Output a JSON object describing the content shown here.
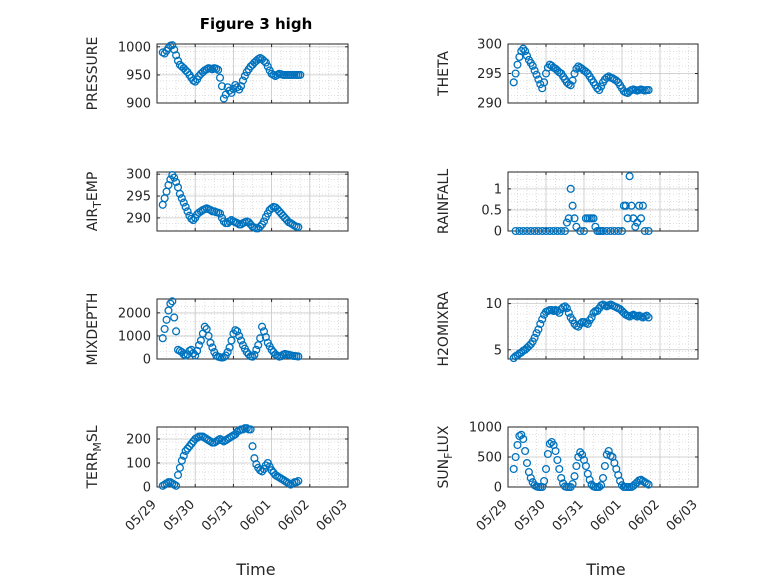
{
  "figure": {
    "title": "Figure 3 high",
    "xlabel": "Time",
    "x_ticks": [
      "05/29",
      "05/30",
      "05/31",
      "06/01",
      "06/02",
      "06/03"
    ],
    "marker_color": "#0072BD",
    "grid": "dotted"
  },
  "chart_data": [
    {
      "type": "scatter",
      "title": "Figure 3 high",
      "ylabel": "PRESSURE",
      "ylim": [
        900,
        1005
      ],
      "yticks": [
        900,
        950,
        1000
      ],
      "x": [
        0.15,
        0.2,
        0.25,
        0.3,
        0.35,
        0.4,
        0.45,
        0.5,
        0.55,
        0.6,
        0.65,
        0.7,
        0.75,
        0.8,
        0.85,
        0.9,
        0.95,
        1.0,
        1.05,
        1.1,
        1.15,
        1.2,
        1.25,
        1.3,
        1.35,
        1.4,
        1.45,
        1.5,
        1.55,
        1.6,
        1.65,
        1.7,
        1.75,
        1.8,
        1.85,
        1.9,
        1.95,
        2.0,
        2.05,
        2.1,
        2.15,
        2.2,
        2.25,
        2.3,
        2.35,
        2.4,
        2.45,
        2.5,
        2.55,
        2.6,
        2.65,
        2.7,
        2.75,
        2.8,
        2.85,
        2.9,
        2.95,
        3.0,
        3.05,
        3.1,
        3.15,
        3.2,
        3.25,
        3.3,
        3.35,
        3.4,
        3.45,
        3.5,
        3.55,
        3.6,
        3.65,
        3.7,
        3.75
      ],
      "y": [
        990,
        988,
        993,
        998,
        1002,
        1003,
        995,
        985,
        975,
        968,
        965,
        962,
        958,
        955,
        950,
        945,
        940,
        938,
        942,
        948,
        952,
        955,
        958,
        960,
        962,
        961,
        960,
        962,
        961,
        959,
        945,
        930,
        908,
        915,
        928,
        922,
        918,
        925,
        932,
        928,
        924,
        930,
        940,
        948,
        955,
        960,
        965,
        968,
        972,
        975,
        978,
        980,
        978,
        975,
        972,
        965,
        958,
        952,
        950,
        948,
        950,
        952,
        951,
        950,
        950,
        950,
        950,
        950,
        950,
        950,
        950,
        950,
        950
      ]
    },
    {
      "type": "scatter",
      "ylabel": "THETA",
      "ylim": [
        290,
        300
      ],
      "yticks": [
        290,
        295,
        300
      ],
      "x": [
        0.15,
        0.2,
        0.25,
        0.3,
        0.35,
        0.4,
        0.45,
        0.5,
        0.55,
        0.6,
        0.65,
        0.7,
        0.75,
        0.8,
        0.85,
        0.9,
        0.95,
        1.0,
        1.05,
        1.1,
        1.15,
        1.2,
        1.25,
        1.3,
        1.35,
        1.4,
        1.45,
        1.5,
        1.55,
        1.6,
        1.65,
        1.7,
        1.75,
        1.8,
        1.85,
        1.9,
        1.95,
        2.0,
        2.05,
        2.1,
        2.15,
        2.2,
        2.25,
        2.3,
        2.35,
        2.4,
        2.45,
        2.5,
        2.55,
        2.6,
        2.65,
        2.7,
        2.75,
        2.8,
        2.85,
        2.9,
        2.95,
        3.0,
        3.05,
        3.1,
        3.15,
        3.2,
        3.25,
        3.3,
        3.35,
        3.4,
        3.45,
        3.5,
        3.55,
        3.6,
        3.65,
        3.7
      ],
      "y": [
        293.5,
        295,
        296.5,
        297.8,
        298.8,
        299.2,
        298.8,
        298,
        297.3,
        296.8,
        296.3,
        295.5,
        294.8,
        294,
        293.2,
        292.5,
        293.5,
        295,
        296,
        296.5,
        296.3,
        296,
        295.8,
        295.5,
        295.2,
        295,
        294.5,
        294,
        293.5,
        293.2,
        293,
        293.8,
        295,
        295.8,
        296.2,
        296,
        295.8,
        295.5,
        295.3,
        295,
        294.5,
        294,
        293.5,
        293,
        292.5,
        292.2,
        292.8,
        293.5,
        294,
        294.3,
        294.5,
        294.3,
        294.2,
        294.0,
        293.8,
        293.5,
        293.0,
        292.5,
        292.0,
        291.8,
        291.7,
        292.0,
        292.2,
        292.3,
        292.2,
        292.1,
        292.2,
        292.3,
        292.2,
        292.1,
        292.2,
        292.2
      ]
    },
    {
      "type": "scatter",
      "ylabel": "AIR_TEMP",
      "ylim": [
        287,
        300.5
      ],
      "yticks": [
        290,
        295,
        300
      ],
      "x": [
        0.15,
        0.2,
        0.25,
        0.3,
        0.35,
        0.4,
        0.45,
        0.5,
        0.55,
        0.6,
        0.65,
        0.7,
        0.75,
        0.8,
        0.85,
        0.9,
        0.95,
        1.0,
        1.05,
        1.1,
        1.15,
        1.2,
        1.25,
        1.3,
        1.35,
        1.4,
        1.45,
        1.5,
        1.55,
        1.6,
        1.65,
        1.7,
        1.75,
        1.8,
        1.85,
        1.9,
        1.95,
        2.0,
        2.05,
        2.1,
        2.15,
        2.2,
        2.25,
        2.3,
        2.35,
        2.4,
        2.45,
        2.5,
        2.55,
        2.6,
        2.65,
        2.7,
        2.75,
        2.8,
        2.85,
        2.9,
        2.95,
        3.0,
        3.05,
        3.1,
        3.15,
        3.2,
        3.25,
        3.3,
        3.35,
        3.4,
        3.45,
        3.5,
        3.55,
        3.6,
        3.65,
        3.7
      ],
      "y": [
        293,
        294.5,
        296,
        297.5,
        298.8,
        299.8,
        299.2,
        298.2,
        297,
        295.5,
        294.5,
        293.5,
        292.5,
        291.5,
        290.5,
        289.8,
        289.5,
        290,
        290.8,
        291.2,
        291.5,
        291.8,
        292,
        292.2,
        292,
        291.8,
        291.5,
        291.5,
        291.3,
        291.2,
        291,
        290,
        289.2,
        288.8,
        288.8,
        289.2,
        289.5,
        289.2,
        289,
        288.8,
        288.5,
        288.5,
        288.8,
        289,
        289.2,
        289,
        288.5,
        288,
        287.8,
        287.6,
        287.6,
        288,
        288.5,
        289.2,
        290.2,
        291,
        291.8,
        292.2,
        292.5,
        292.4,
        292.0,
        291.5,
        291,
        290.5,
        290,
        289.5,
        289,
        288.8,
        288.5,
        288.2,
        288,
        287.9
      ]
    },
    {
      "type": "scatter",
      "ylabel": "RAINFALL",
      "ylim": [
        0,
        1.4
      ],
      "yticks": [
        0,
        0.5,
        1
      ],
      "x": [
        0.2,
        0.3,
        0.4,
        0.5,
        0.6,
        0.7,
        0.8,
        0.9,
        1.0,
        1.1,
        1.2,
        1.3,
        1.4,
        1.5,
        1.55,
        1.6,
        1.65,
        1.7,
        1.75,
        1.8,
        1.9,
        2.0,
        2.05,
        2.1,
        2.15,
        2.2,
        2.25,
        2.3,
        2.35,
        2.4,
        2.45,
        2.5,
        2.6,
        2.7,
        2.8,
        2.9,
        3.0,
        3.05,
        3.1,
        3.15,
        3.2,
        3.25,
        3.3,
        3.35,
        3.4,
        3.45,
        3.5,
        3.55,
        3.6,
        3.7
      ],
      "y": [
        0,
        0,
        0,
        0,
        0,
        0,
        0,
        0,
        0,
        0,
        0,
        0,
        0,
        0,
        0.2,
        0.3,
        1.0,
        0.6,
        0.3,
        0.1,
        0,
        0,
        0.3,
        0.3,
        0.3,
        0.3,
        0.3,
        0.1,
        0,
        0,
        0,
        0,
        0,
        0,
        0,
        0,
        0,
        0.6,
        0.6,
        0.3,
        1.3,
        0.6,
        0.3,
        0.1,
        0.2,
        0.6,
        0.3,
        0.6,
        0,
        0
      ]
    },
    {
      "type": "scatter",
      "ylabel": "MIXDEPTH",
      "ylim": [
        0,
        2600
      ],
      "yticks": [
        0,
        1000,
        2000
      ],
      "x": [
        0.15,
        0.2,
        0.25,
        0.3,
        0.35,
        0.4,
        0.45,
        0.5,
        0.55,
        0.6,
        0.65,
        0.7,
        0.75,
        0.8,
        0.85,
        0.9,
        0.95,
        1.0,
        1.05,
        1.1,
        1.15,
        1.2,
        1.25,
        1.3,
        1.35,
        1.4,
        1.45,
        1.5,
        1.55,
        1.6,
        1.65,
        1.7,
        1.75,
        1.8,
        1.85,
        1.9,
        1.95,
        2.0,
        2.05,
        2.1,
        2.15,
        2.2,
        2.25,
        2.3,
        2.35,
        2.4,
        2.45,
        2.5,
        2.55,
        2.6,
        2.65,
        2.7,
        2.75,
        2.8,
        2.85,
        2.9,
        2.95,
        3.0,
        3.05,
        3.1,
        3.15,
        3.2,
        3.25,
        3.3,
        3.35,
        3.4,
        3.45,
        3.5,
        3.55,
        3.6,
        3.65,
        3.7
      ],
      "y": [
        900,
        1300,
        1700,
        2100,
        2400,
        2500,
        1800,
        1200,
        400,
        350,
        300,
        200,
        150,
        200,
        350,
        400,
        250,
        150,
        350,
        600,
        800,
        1100,
        1400,
        1300,
        1000,
        700,
        500,
        300,
        150,
        100,
        80,
        60,
        80,
        150,
        300,
        500,
        800,
        1100,
        1250,
        1200,
        1000,
        800,
        600,
        450,
        300,
        200,
        120,
        100,
        180,
        400,
        600,
        900,
        1400,
        1200,
        950,
        700,
        550,
        400,
        300,
        200,
        150,
        100,
        120,
        180,
        220,
        200,
        180,
        160,
        140,
        130,
        120,
        110
      ]
    },
    {
      "type": "scatter",
      "ylabel": "H2OMIXRA",
      "ylim": [
        4,
        10.5
      ],
      "yticks": [
        5,
        10
      ],
      "x": [
        0.15,
        0.2,
        0.25,
        0.3,
        0.35,
        0.4,
        0.45,
        0.5,
        0.55,
        0.6,
        0.65,
        0.7,
        0.75,
        0.8,
        0.85,
        0.9,
        0.95,
        1.0,
        1.05,
        1.1,
        1.15,
        1.2,
        1.25,
        1.3,
        1.35,
        1.4,
        1.45,
        1.5,
        1.55,
        1.6,
        1.65,
        1.7,
        1.75,
        1.8,
        1.85,
        1.9,
        1.95,
        2.0,
        2.05,
        2.1,
        2.15,
        2.2,
        2.25,
        2.3,
        2.35,
        2.4,
        2.45,
        2.5,
        2.55,
        2.6,
        2.65,
        2.7,
        2.75,
        2.8,
        2.85,
        2.9,
        2.95,
        3.0,
        3.05,
        3.1,
        3.15,
        3.2,
        3.25,
        3.3,
        3.35,
        3.4,
        3.45,
        3.5,
        3.55,
        3.6,
        3.65,
        3.7
      ],
      "y": [
        4.1,
        4.3,
        4.4,
        4.6,
        4.7,
        4.9,
        5.0,
        5.2,
        5.4,
        5.6,
        5.9,
        6.3,
        6.8,
        7.2,
        7.8,
        8.3,
        8.8,
        9.1,
        9.2,
        9.3,
        9.3,
        9.2,
        9.3,
        9.2,
        9.0,
        9.4,
        9.6,
        9.7,
        9.5,
        9.0,
        8.5,
        8.2,
        7.8,
        7.6,
        7.5,
        7.8,
        8.0,
        8.0,
        7.9,
        7.8,
        8.2,
        8.5,
        9.0,
        9.2,
        9.2,
        9.5,
        9.8,
        9.9,
        9.8,
        9.7,
        9.8,
        9.9,
        9.8,
        9.7,
        9.6,
        9.5,
        9.4,
        9.2,
        9.0,
        8.8,
        8.7,
        8.6,
        8.7,
        8.8,
        8.7,
        8.6,
        8.7,
        8.6,
        8.5,
        8.6,
        8.7,
        8.5
      ]
    },
    {
      "type": "scatter",
      "ylabel": "TERR_MSL",
      "ylim": [
        0,
        250
      ],
      "yticks": [
        0,
        100,
        200
      ],
      "x": [
        0.15,
        0.2,
        0.25,
        0.3,
        0.35,
        0.4,
        0.45,
        0.5,
        0.55,
        0.6,
        0.65,
        0.7,
        0.75,
        0.8,
        0.85,
        0.9,
        0.95,
        1.0,
        1.05,
        1.1,
        1.15,
        1.2,
        1.25,
        1.3,
        1.35,
        1.4,
        1.45,
        1.5,
        1.55,
        1.6,
        1.65,
        1.7,
        1.75,
        1.8,
        1.85,
        1.9,
        1.95,
        2.0,
        2.05,
        2.1,
        2.15,
        2.2,
        2.25,
        2.3,
        2.35,
        2.4,
        2.45,
        2.5,
        2.55,
        2.6,
        2.65,
        2.7,
        2.75,
        2.8,
        2.85,
        2.9,
        2.95,
        3.0,
        3.05,
        3.1,
        3.15,
        3.2,
        3.25,
        3.3,
        3.35,
        3.4,
        3.45,
        3.5,
        3.55,
        3.6,
        3.65,
        3.7
      ],
      "y": [
        5,
        10,
        15,
        20,
        20,
        15,
        10,
        5,
        50,
        80,
        110,
        130,
        150,
        160,
        170,
        180,
        190,
        200,
        205,
        210,
        210,
        210,
        205,
        200,
        195,
        190,
        185,
        185,
        190,
        195,
        200,
        195,
        190,
        195,
        200,
        205,
        210,
        215,
        220,
        230,
        235,
        240,
        240,
        245,
        245,
        240,
        240,
        170,
        120,
        95,
        80,
        70,
        65,
        75,
        90,
        100,
        85,
        70,
        60,
        50,
        45,
        40,
        35,
        30,
        25,
        20,
        15,
        10,
        15,
        20,
        20,
        25
      ]
    },
    {
      "type": "scatter",
      "ylabel": "SUN_FLUX",
      "ylim": [
        0,
        1000
      ],
      "yticks": [
        0,
        500,
        1000
      ],
      "x": [
        0.15,
        0.2,
        0.25,
        0.3,
        0.35,
        0.4,
        0.45,
        0.5,
        0.55,
        0.6,
        0.65,
        0.7,
        0.75,
        0.8,
        0.85,
        0.9,
        0.95,
        1.0,
        1.05,
        1.1,
        1.15,
        1.2,
        1.25,
        1.3,
        1.35,
        1.4,
        1.45,
        1.5,
        1.55,
        1.6,
        1.65,
        1.7,
        1.75,
        1.8,
        1.85,
        1.9,
        1.95,
        2.0,
        2.05,
        2.1,
        2.15,
        2.2,
        2.25,
        2.3,
        2.35,
        2.4,
        2.45,
        2.5,
        2.55,
        2.6,
        2.65,
        2.7,
        2.75,
        2.8,
        2.85,
        2.9,
        2.95,
        3.0,
        3.05,
        3.1,
        3.15,
        3.2,
        3.25,
        3.3,
        3.35,
        3.4,
        3.45,
        3.5,
        3.55,
        3.6,
        3.65,
        3.7
      ],
      "y": [
        300,
        500,
        700,
        850,
        870,
        800,
        600,
        400,
        250,
        150,
        80,
        30,
        10,
        0,
        0,
        0,
        100,
        300,
        550,
        720,
        750,
        700,
        600,
        450,
        300,
        150,
        60,
        10,
        0,
        0,
        0,
        50,
        180,
        350,
        500,
        580,
        540,
        450,
        350,
        220,
        120,
        40,
        10,
        0,
        0,
        0,
        30,
        150,
        350,
        540,
        600,
        520,
        500,
        400,
        300,
        200,
        100,
        30,
        0,
        0,
        0,
        0,
        0,
        20,
        50,
        80,
        110,
        120,
        100,
        80,
        60,
        40
      ]
    }
  ]
}
